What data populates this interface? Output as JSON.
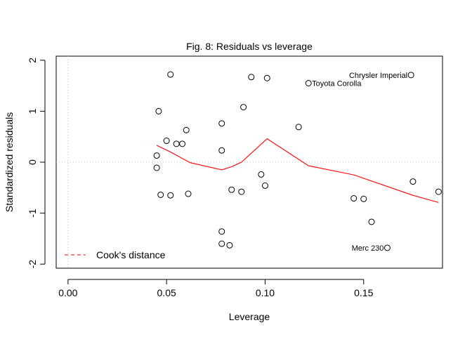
{
  "chart_data": {
    "type": "scatter",
    "title": "Fig. 8: Residuals vs leverage",
    "xlabel": "Leverage",
    "ylabel": "Standardized residuals",
    "xlim": [
      -0.006,
      0.19
    ],
    "ylim": [
      -2.08,
      2.08
    ],
    "x_ticks": [
      0.0,
      0.05,
      0.1,
      0.15
    ],
    "x_tick_labels": [
      "0.00",
      "0.05",
      "0.10",
      "0.15"
    ],
    "y_ticks": [
      -2,
      -1,
      0,
      1,
      2
    ],
    "y_tick_labels": [
      "-2",
      "-1",
      "0",
      "1",
      "2"
    ],
    "grid": false,
    "reference_lines": {
      "hline_y": 0,
      "vline_x": 0,
      "style": "dotted",
      "color": "#c0c0c0"
    },
    "points": [
      {
        "x": 0.052,
        "y": 1.72
      },
      {
        "x": 0.093,
        "y": 1.67
      },
      {
        "x": 0.101,
        "y": 1.65
      },
      {
        "x": 0.174,
        "y": 1.71,
        "label": "Chrysler Imperial"
      },
      {
        "x": 0.122,
        "y": 1.55,
        "label": "Toyota Corolla"
      },
      {
        "x": 0.046,
        "y": 1.0
      },
      {
        "x": 0.089,
        "y": 1.08
      },
      {
        "x": 0.078,
        "y": 0.76
      },
      {
        "x": 0.117,
        "y": 0.69
      },
      {
        "x": 0.06,
        "y": 0.63
      },
      {
        "x": 0.05,
        "y": 0.42
      },
      {
        "x": 0.055,
        "y": 0.36
      },
      {
        "x": 0.058,
        "y": 0.36
      },
      {
        "x": 0.078,
        "y": 0.23
      },
      {
        "x": 0.045,
        "y": 0.13
      },
      {
        "x": 0.045,
        "y": -0.11
      },
      {
        "x": 0.098,
        "y": -0.24
      },
      {
        "x": 0.1,
        "y": -0.46
      },
      {
        "x": 0.083,
        "y": -0.54
      },
      {
        "x": 0.088,
        "y": -0.58
      },
      {
        "x": 0.061,
        "y": -0.62
      },
      {
        "x": 0.047,
        "y": -0.64
      },
      {
        "x": 0.052,
        "y": -0.65
      },
      {
        "x": 0.175,
        "y": -0.38
      },
      {
        "x": 0.188,
        "y": -0.58
      },
      {
        "x": 0.145,
        "y": -0.71
      },
      {
        "x": 0.15,
        "y": -0.72
      },
      {
        "x": 0.154,
        "y": -1.17
      },
      {
        "x": 0.078,
        "y": -1.36
      },
      {
        "x": 0.078,
        "y": -1.6
      },
      {
        "x": 0.082,
        "y": -1.63
      },
      {
        "x": 0.162,
        "y": -1.68,
        "label": "Merc 230"
      }
    ],
    "series": [
      {
        "type": "line",
        "color": "#ff0000",
        "x": [
          0.045,
          0.052,
          0.062,
          0.078,
          0.083,
          0.088,
          0.101,
          0.122,
          0.145,
          0.175,
          0.188
        ],
        "y": [
          0.33,
          0.2,
          -0.01,
          -0.15,
          -0.09,
          0.0,
          0.46,
          -0.07,
          -0.25,
          -0.65,
          -0.79
        ]
      }
    ],
    "legend": {
      "position": "bottom-left",
      "entries": [
        {
          "label": "Cook's distance",
          "color": "#ff0000",
          "style": "dashed"
        }
      ]
    }
  }
}
